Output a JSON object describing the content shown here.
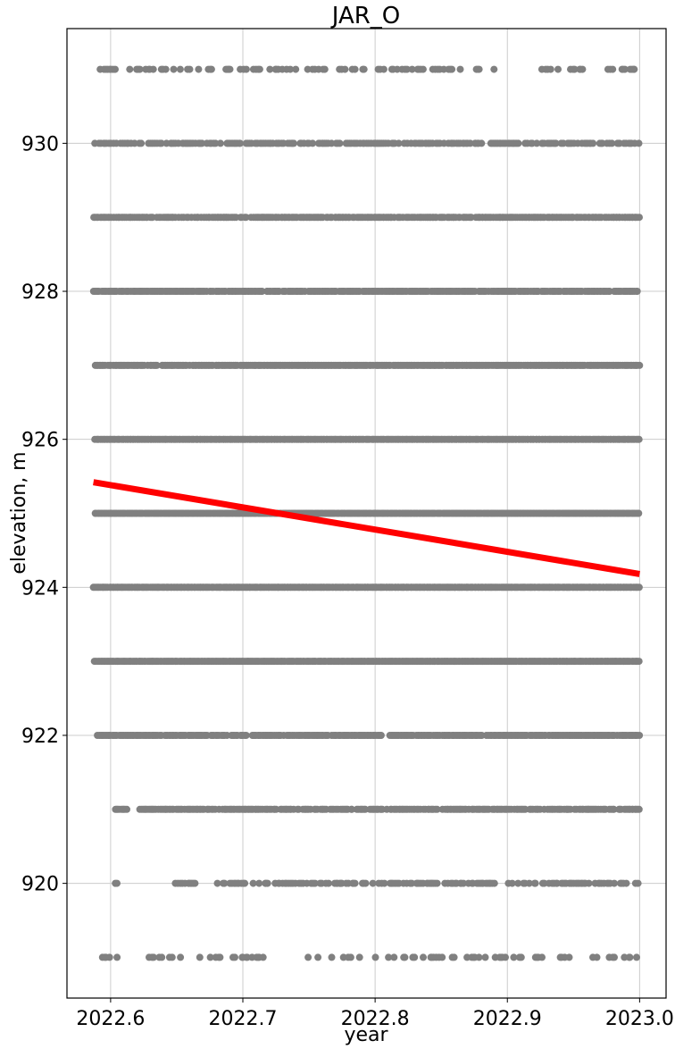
{
  "chart_data": {
    "type": "scatter",
    "title": "JAR_O",
    "xlabel": "year",
    "ylabel": "elevation, m",
    "xlim": [
      2022.567,
      2023.02
    ],
    "ylim": [
      918.45,
      931.55
    ],
    "xticks": [
      2022.6,
      2022.7,
      2022.8,
      2022.9,
      2023.0
    ],
    "xtick_labels": [
      "2022.6",
      "2022.7",
      "2022.8",
      "2022.9",
      "2023.0"
    ],
    "yticks": [
      920,
      922,
      924,
      926,
      928,
      930
    ],
    "ytick_labels": [
      "920",
      "922",
      "924",
      "926",
      "928",
      "930"
    ],
    "grid": true,
    "point_color": "#808080",
    "trend_color": "#ff0000",
    "x_start": 2022.587,
    "x_end": 2023.0,
    "levels": [
      {
        "elevation": 919,
        "density": 0.28,
        "gaps": [
          [
            2022.606,
            2022.627
          ],
          [
            2022.655,
            2022.665
          ],
          [
            2022.72,
            2022.745
          ],
          [
            2022.79,
            2022.8
          ]
        ]
      },
      {
        "elevation": 920,
        "density": 0.55,
        "gaps": [
          [
            2022.587,
            2022.602
          ],
          [
            2022.61,
            2022.648
          ],
          [
            2022.665,
            2022.68
          ]
        ]
      },
      {
        "elevation": 921,
        "density": 0.8,
        "gaps": [
          [
            2022.587,
            2022.603
          ],
          [
            2022.614,
            2022.622
          ]
        ]
      },
      {
        "elevation": 922,
        "density": 0.9,
        "gaps": []
      },
      {
        "elevation": 923,
        "density": 1.0,
        "gaps": []
      },
      {
        "elevation": 924,
        "density": 1.0,
        "gaps": []
      },
      {
        "elevation": 925,
        "density": 1.0,
        "gaps": []
      },
      {
        "elevation": 926,
        "density": 1.0,
        "gaps": []
      },
      {
        "elevation": 927,
        "density": 0.95,
        "gaps": []
      },
      {
        "elevation": 928,
        "density": 0.9,
        "gaps": []
      },
      {
        "elevation": 929,
        "density": 0.8,
        "gaps": []
      },
      {
        "elevation": 930,
        "density": 0.6,
        "gaps": []
      },
      {
        "elevation": 931,
        "density": 0.3,
        "gaps": [
          [
            2022.89,
            2022.92
          ],
          [
            2022.96,
            2022.975
          ]
        ]
      }
    ],
    "trend_line": {
      "x": [
        2022.587,
        2023.0
      ],
      "y": [
        925.42,
        924.18
      ]
    }
  }
}
